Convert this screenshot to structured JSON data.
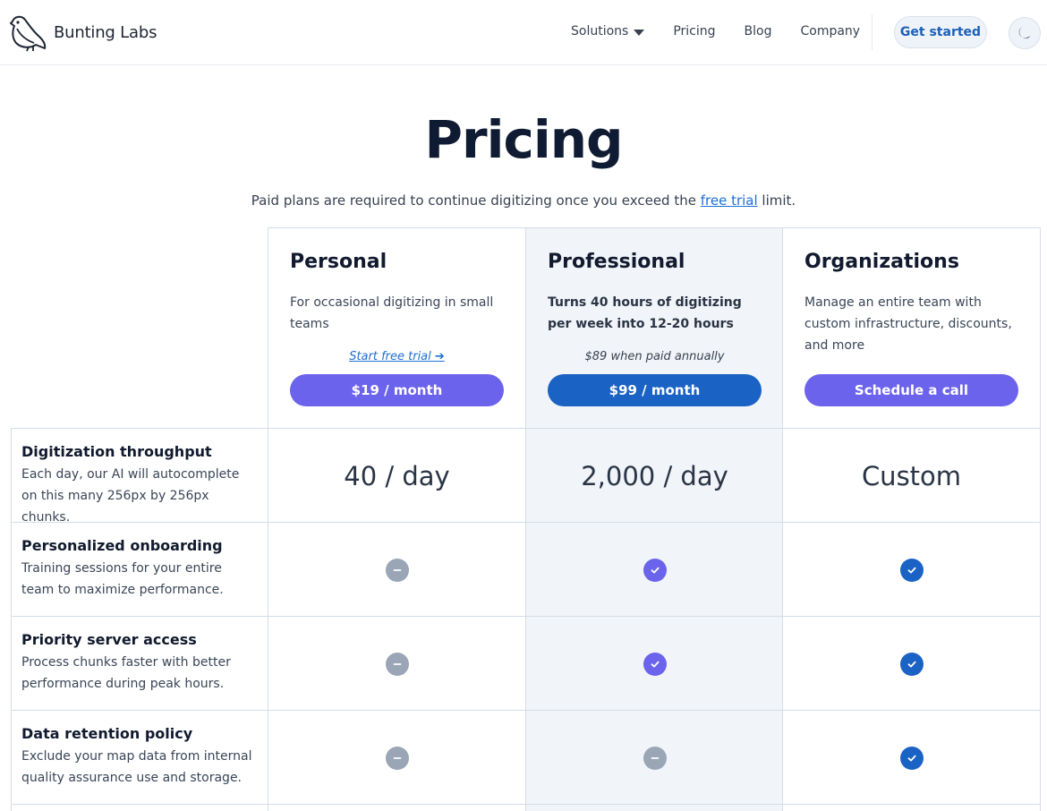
{
  "nav": {
    "brand": "Bunting Labs",
    "links": [
      "Solutions",
      "Pricing",
      "Blog",
      "Company"
    ],
    "cta": "Get started",
    "theme_icon": "moon-icon"
  },
  "page": {
    "title": "Pricing",
    "subtitle_before": "Paid plans are required to continue digitizing once you exceed the ",
    "subtitle_link": "free trial",
    "subtitle_after": " limit."
  },
  "plans": [
    {
      "name": "Personal",
      "description": "For occasional digitizing in small teams",
      "note": "Start free trial ➔",
      "button": "$19 / month"
    },
    {
      "name": "Professional",
      "description": "Turns 40 hours of digitizing per week into 12-20 hours",
      "note": "$89 when paid annually",
      "button": "$99 / month"
    },
    {
      "name": "Organizations",
      "description": "Manage an entire team with custom infrastructure, discounts, and more",
      "note": "",
      "button": "Schedule a call"
    }
  ],
  "features": [
    {
      "title": "Digitization throughput",
      "description": "Each day, our AI will autocomplete on this many 256px by 256px chunks.",
      "values": [
        "40 / day",
        "2,000 / day",
        "Custom"
      ]
    },
    {
      "title": "Personalized onboarding",
      "description": "Training sessions for your entire team to maximize performance.",
      "values": [
        "not-included",
        "included",
        "included"
      ]
    },
    {
      "title": "Priority server access",
      "description": "Process chunks faster with better performance during peak hours.",
      "values": [
        "not-included",
        "included",
        "included"
      ]
    },
    {
      "title": "Data retention policy",
      "description": "Exclude your map data from internal quality assurance use and storage.",
      "values": [
        "not-included",
        "not-included",
        "included"
      ]
    }
  ],
  "colors": {
    "accent_purple": "#6c63ec",
    "accent_blue": "#1a62c4",
    "muted_icon": "#9aa6b6",
    "highlight_column": "#f1f4f8"
  }
}
